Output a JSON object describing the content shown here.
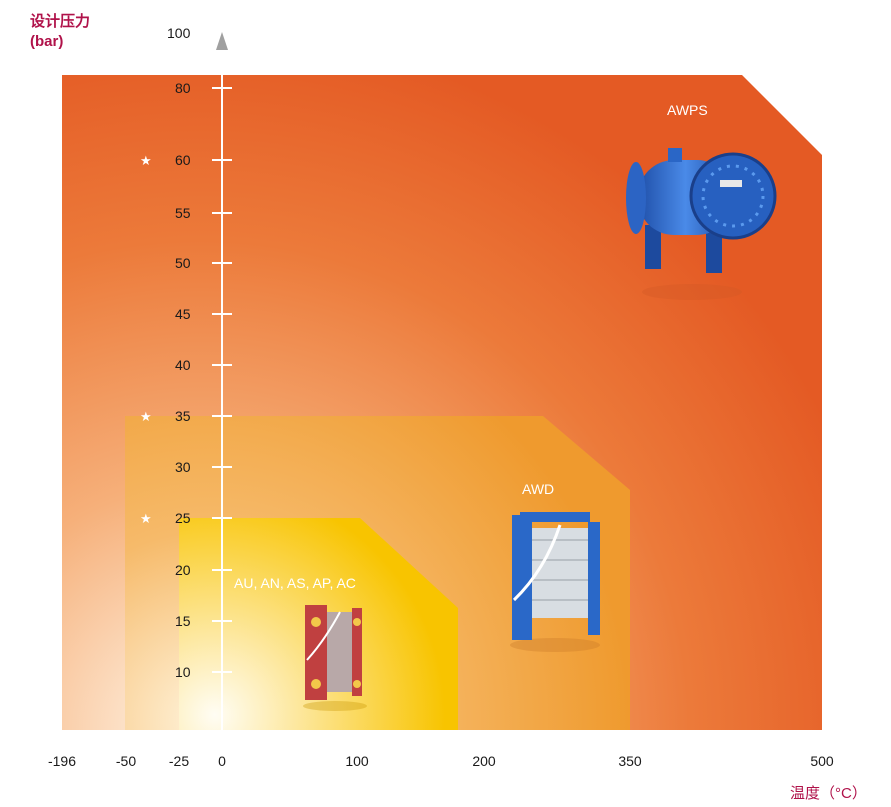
{
  "chart_data": {
    "type": "area",
    "y_axis_title_line1": "设计压力",
    "y_axis_title_line2": "(bar)",
    "x_axis_title": "温度（°C）",
    "y_ticks": [
      "100",
      "80",
      "60",
      "55",
      "50",
      "45",
      "40",
      "35",
      "30",
      "25",
      "20",
      "15",
      "10"
    ],
    "x_ticks": [
      "-196",
      "-50",
      "-25",
      "0",
      "100",
      "200",
      "350",
      "500"
    ],
    "starred_y_ticks": [
      "60",
      "35",
      "25"
    ],
    "regions": [
      {
        "name": "AWPS",
        "temp_min": -196,
        "temp_max": 500,
        "pressure_max": 80,
        "color": "#e8642a"
      },
      {
        "name": "AWD",
        "temp_min": -50,
        "temp_max": 350,
        "pressure_max": 35,
        "color": "#f0992c"
      },
      {
        "name": "AU, AN, AS, AP, AC",
        "temp_min": -25,
        "temp_max": 180,
        "pressure_max": 25,
        "color": "#f8c400"
      }
    ],
    "colors": {
      "axis": "#ffffff",
      "title": "#b0124a",
      "product_blue": "#2a68c8",
      "product_red": "#c04040"
    }
  }
}
